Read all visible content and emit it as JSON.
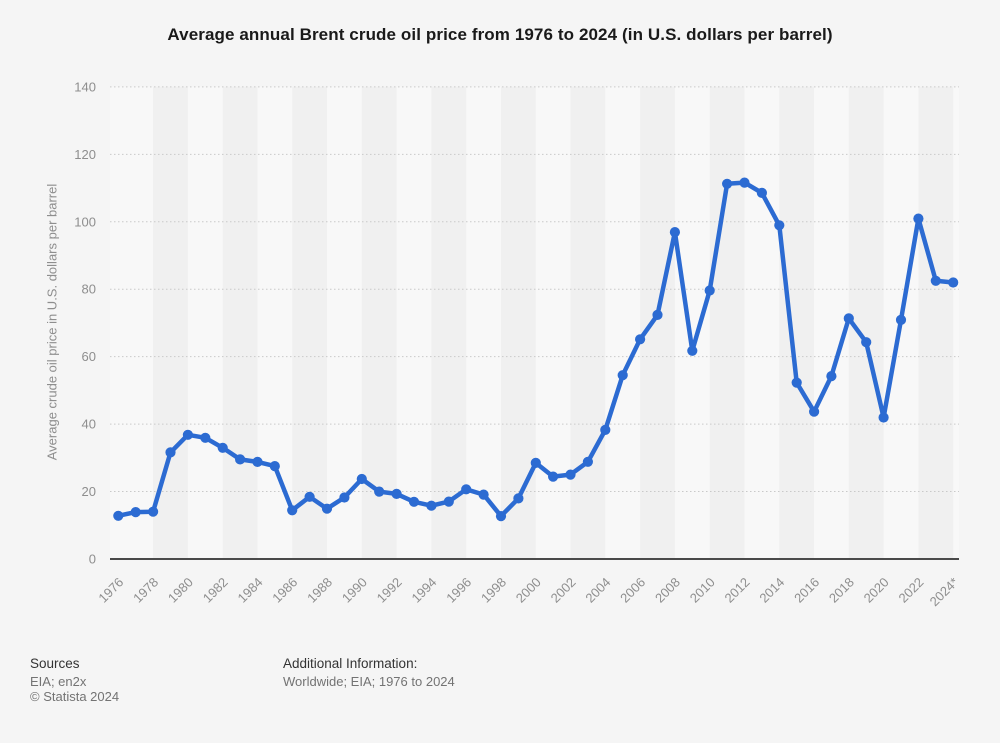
{
  "title": "Average annual Brent crude oil price from 1976 to 2024 (in U.S. dollars per barrel)",
  "chart_data": {
    "type": "line",
    "title": "Average annual Brent crude oil price from 1976 to 2024 (in U.S. dollars per barrel)",
    "xlabel": "",
    "ylabel": "Average crude oil price in U.S. dollars per barrel",
    "ylim": [
      0,
      140
    ],
    "ytick_interval": 20,
    "ytick_labels": [
      "0",
      "20",
      "40",
      "60",
      "80",
      "100",
      "120",
      "140"
    ],
    "grid": "horizontal-dotted",
    "legend": "none",
    "background_bands": "alternating vertical 2-year stripes",
    "xtick_labels": [
      "1976",
      "1978",
      "1980",
      "1982",
      "1984",
      "1986",
      "1988",
      "1990",
      "1992",
      "1994",
      "1996",
      "1998",
      "2000",
      "2002",
      "2004",
      "2006",
      "2008",
      "2010",
      "2012",
      "2014",
      "2016",
      "2018",
      "2020",
      "2022",
      "2024*"
    ],
    "x": [
      1976,
      1977,
      1978,
      1979,
      1980,
      1981,
      1982,
      1983,
      1984,
      1985,
      1986,
      1987,
      1988,
      1989,
      1990,
      1991,
      1992,
      1993,
      1994,
      1995,
      1996,
      1997,
      1998,
      1999,
      2000,
      2001,
      2002,
      2003,
      2004,
      2005,
      2006,
      2007,
      2008,
      2009,
      2010,
      2011,
      2012,
      2013,
      2014,
      2015,
      2016,
      2017,
      2018,
      2019,
      2020,
      2021,
      2022,
      2023,
      2024
    ],
    "values": [
      12.8,
      13.92,
      14.02,
      31.61,
      36.83,
      35.93,
      32.97,
      29.55,
      28.78,
      27.56,
      14.43,
      18.44,
      14.92,
      18.23,
      23.73,
      20.0,
      19.32,
      16.97,
      15.82,
      17.02,
      20.67,
      19.09,
      12.72,
      17.97,
      28.5,
      24.44,
      25.02,
      28.83,
      38.27,
      54.52,
      65.14,
      72.39,
      96.94,
      61.74,
      79.61,
      111.26,
      111.63,
      108.56,
      98.97,
      52.32,
      43.67,
      54.25,
      71.34,
      64.3,
      41.96,
      70.89,
      100.93,
      82.49,
      82.0
    ]
  },
  "footer": {
    "sources_label": "Sources",
    "sources_text": "EIA; en2x",
    "copyright": "© Statista 2024",
    "additional_info_label": "Additional Information:",
    "additional_info_text": "Worldwide; EIA; 1976 to 2024"
  },
  "colors": {
    "line": "#2c6bd2",
    "background": "#f5f5f5",
    "band_light": "#f8f8f8",
    "band_dark": "#f0f0f0",
    "gridline": "#c9c9c9",
    "axis_line": "#4a4a4a",
    "title_text": "#1a1a1a",
    "tick_text": "#8e8e8e",
    "footer_dark": "#333333",
    "footer_gray": "#737373"
  }
}
